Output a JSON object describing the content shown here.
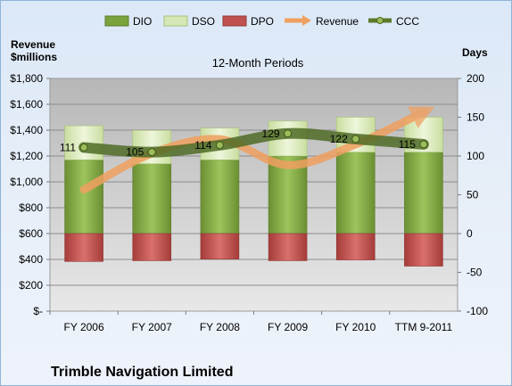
{
  "chart_data": {
    "type": "bar",
    "title": "12-Month Periods",
    "company": "Trimble Navigation Limited",
    "categories": [
      "FY 2006",
      "FY 2007",
      "FY 2008",
      "FY 2009",
      "FY 2010",
      "TTM 9-2011"
    ],
    "left_axis": {
      "title_line1": "Revenue",
      "title_line2": "$millions",
      "range": [
        0,
        1800
      ],
      "ticks": [
        0,
        200,
        400,
        600,
        800,
        1000,
        1200,
        1400,
        1600,
        1800
      ],
      "tick_labels": [
        "$-",
        "$200",
        "$400",
        "$600",
        "$800",
        "$1,000",
        "$1,200",
        "$1,400",
        "$1,600",
        "$1,800"
      ]
    },
    "right_axis": {
      "title": "Days",
      "range": [
        -100,
        200
      ],
      "ticks": [
        -100,
        -50,
        0,
        50,
        100,
        150,
        200
      ],
      "tick_labels": [
        "-100",
        "-50",
        "0",
        "50",
        "100",
        "150",
        "200"
      ]
    },
    "series": [
      {
        "name": "DIO",
        "type": "stacked-bar",
        "axis": "right",
        "values": [
          95,
          90,
          95,
          100,
          105,
          105
        ],
        "color": "#7aa23d"
      },
      {
        "name": "DSO",
        "type": "stacked-bar",
        "axis": "right",
        "values": [
          44,
          43,
          41,
          45,
          45,
          45
        ],
        "color": "#d5e7b5"
      },
      {
        "name": "DPO",
        "type": "stacked-bar",
        "axis": "right",
        "values": [
          -36,
          -35,
          -33,
          -35,
          -34,
          -42
        ],
        "color": "#c0504d"
      },
      {
        "name": "Revenue",
        "type": "line",
        "axis": "left",
        "values": [
          940,
          1220,
          1330,
          1130,
          1290,
          1540
        ],
        "color": "#f0a060"
      },
      {
        "name": "CCC",
        "type": "line",
        "axis": "right",
        "values": [
          111,
          105,
          114,
          129,
          122,
          115
        ],
        "color": "#5a7a2a"
      }
    ]
  }
}
